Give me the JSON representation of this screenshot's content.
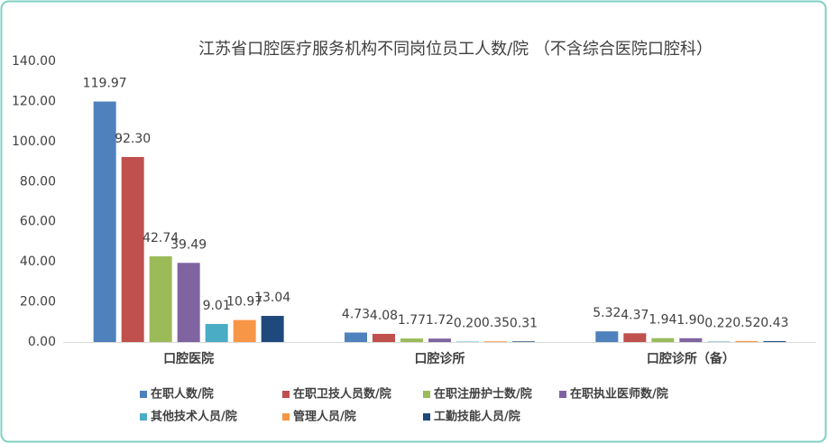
{
  "chart_data": {
    "type": "bar",
    "title": "江苏省口腔医疗服务机构不同岗位员工人数/院 （不含综合医院口腔科）",
    "categories": [
      "口腔医院",
      "口腔诊所",
      "口腔诊所（备）"
    ],
    "series": [
      {
        "name": "在职人数/院",
        "color": "#4f81bd",
        "values": [
          119.97,
          4.73,
          5.32
        ],
        "value_labels": [
          "119.97",
          "4.73",
          "5.32"
        ]
      },
      {
        "name": "在职卫技人员数/院",
        "color": "#c0504d",
        "values": [
          92.3,
          4.08,
          4.37
        ],
        "value_labels": [
          "92.30",
          "4.08",
          "4.37"
        ]
      },
      {
        "name": "在职注册护士数/院",
        "color": "#9bbb59",
        "values": [
          42.74,
          1.77,
          1.94
        ],
        "value_labels": [
          "42.74",
          "1.77",
          "1.94"
        ]
      },
      {
        "name": "在职执业医师数/院",
        "color": "#8064a2",
        "values": [
          39.49,
          1.72,
          1.9
        ],
        "value_labels": [
          "39.49",
          "1.72",
          "1.90"
        ]
      },
      {
        "name": "其他技术人员/院",
        "color": "#4bacc6",
        "values": [
          9.01,
          0.2,
          0.22
        ],
        "value_labels": [
          "9.01",
          "0.20",
          "0.22"
        ]
      },
      {
        "name": "管理人员/院",
        "color": "#f79646",
        "values": [
          10.97,
          0.35,
          0.52
        ],
        "value_labels": [
          "10.97",
          "0.35",
          "0.52"
        ]
      },
      {
        "name": "工勤技能人员/院",
        "color": "#1f497d",
        "values": [
          13.04,
          0.31,
          0.43
        ],
        "value_labels": [
          "13.04",
          "0.31",
          "0.43"
        ]
      }
    ],
    "ylim": [
      0,
      140
    ],
    "yticks": [
      {
        "value": 0,
        "label": "0.00"
      },
      {
        "value": 20,
        "label": "20.00"
      },
      {
        "value": 40,
        "label": "40.00"
      },
      {
        "value": 60,
        "label": "60.00"
      },
      {
        "value": 80,
        "label": "80.00"
      },
      {
        "value": 100,
        "label": "100.00"
      },
      {
        "value": 120,
        "label": "120.00"
      },
      {
        "value": 140,
        "label": "140.00"
      }
    ],
    "grid": false,
    "legend": "bottom"
  }
}
